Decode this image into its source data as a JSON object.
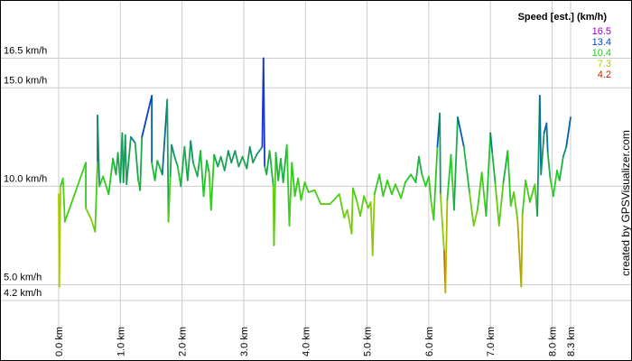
{
  "chart_data": {
    "type": "line",
    "legend_title": "Speed [est.] (km/h)",
    "legend": [
      {
        "value": 16.5,
        "color": "#9900cc"
      },
      {
        "value": 13.4,
        "color": "#0044cc"
      },
      {
        "value": 10.4,
        "color": "#22cc22"
      },
      {
        "value": 7.3,
        "color": "#aacc00"
      },
      {
        "value": 4.2,
        "color": "#cc2200"
      }
    ],
    "credit": "created by GPSVisualizer.com",
    "xlim": [
      0,
      8.3
    ],
    "ylim": [
      3.65,
      19.0
    ],
    "xticks": [
      {
        "value": 0,
        "label": "0.0 km"
      },
      {
        "value": 1,
        "label": "1.0 km"
      },
      {
        "value": 2,
        "label": "2.0 km"
      },
      {
        "value": 3,
        "label": "3.0 km"
      },
      {
        "value": 4,
        "label": "4.0 km"
      },
      {
        "value": 5,
        "label": "5.0 km"
      },
      {
        "value": 6,
        "label": "6.0 km"
      },
      {
        "value": 7,
        "label": "7.0 km"
      },
      {
        "value": 8,
        "label": "8.0 km"
      },
      {
        "value": 8.3,
        "label": "8.3 km"
      }
    ],
    "yticks": [
      {
        "value": 4.2,
        "label": "4.2 km/h"
      },
      {
        "value": 5,
        "label": "5.0 km/h"
      },
      {
        "value": 10,
        "label": "10.0 km/h"
      },
      {
        "value": 15,
        "label": "15.0 km/h"
      },
      {
        "value": 16.5,
        "label": "16.5 km/h"
      }
    ],
    "grid": true,
    "x": [
      0.0,
      0.01,
      0.03,
      0.07,
      0.1,
      0.44,
      0.44,
      0.53,
      0.59,
      0.63,
      0.63,
      0.66,
      0.72,
      0.81,
      0.88,
      0.93,
      0.96,
      1.0,
      1.03,
      1.05,
      1.08,
      1.1,
      1.17,
      1.24,
      1.29,
      1.32,
      1.35,
      1.51,
      1.51,
      1.56,
      1.6,
      1.68,
      1.76,
      1.78,
      1.81,
      1.83,
      1.88,
      1.93,
      1.98,
      2.04,
      2.09,
      2.14,
      2.18,
      2.25,
      2.3,
      2.35,
      2.4,
      2.44,
      2.47,
      2.52,
      2.58,
      2.63,
      2.69,
      2.75,
      2.8,
      2.86,
      2.92,
      2.98,
      3.05,
      3.1,
      3.15,
      3.21,
      3.3,
      3.32,
      3.34,
      3.37,
      3.42,
      3.48,
      3.49,
      3.52,
      3.56,
      3.6,
      3.64,
      3.7,
      3.74,
      3.78,
      3.83,
      3.88,
      3.93,
      3.99,
      4.05,
      4.15,
      4.25,
      4.4,
      4.55,
      4.63,
      4.68,
      4.75,
      4.77,
      4.83,
      4.89,
      4.95,
      5.02,
      5.06,
      5.09,
      5.12,
      5.2,
      5.26,
      5.33,
      5.4,
      5.46,
      5.55,
      5.62,
      5.71,
      5.79,
      5.84,
      5.89,
      5.95,
      6.0,
      6.04,
      6.08,
      6.14,
      6.18,
      6.19,
      6.25,
      6.27,
      6.3,
      6.36,
      6.41,
      6.47,
      6.57,
      6.66,
      6.73,
      6.79,
      6.86,
      6.93,
      7.0,
      7.03,
      7.08,
      7.14,
      7.21,
      7.28,
      7.33,
      7.38,
      7.44,
      7.5,
      7.52,
      7.57,
      7.64,
      7.72,
      7.76,
      7.8,
      7.82,
      7.87,
      7.91,
      7.93,
      7.97,
      8.02,
      8.08,
      8.12,
      8.18,
      8.23,
      8.3
    ],
    "series": [
      {
        "name": "Speed",
        "values": [
          9.6,
          4.9,
          10.0,
          10.4,
          8.2,
          11.2,
          8.9,
          8.3,
          7.7,
          11.3,
          13.6,
          10.0,
          10.5,
          9.6,
          11.4,
          10.6,
          11.7,
          10.2,
          12.7,
          10.2,
          12.6,
          10.1,
          12.5,
          12.2,
          10.3,
          9.8,
          12.5,
          14.6,
          11.2,
          10.3,
          11.3,
          10.6,
          14.4,
          8.2,
          10.5,
          12.1,
          11.5,
          11.0,
          10.0,
          12.0,
          10.3,
          12.3,
          11.2,
          10.5,
          11.8,
          9.5,
          11.3,
          10.7,
          8.8,
          11.6,
          11.0,
          11.5,
          10.8,
          11.8,
          11.2,
          11.8,
          11.0,
          11.5,
          10.9,
          12.0,
          11.2,
          11.6,
          12.0,
          16.5,
          11.0,
          10.6,
          11.8,
          10.0,
          7.0,
          11.7,
          10.3,
          11.4,
          10.2,
          12.1,
          8.0,
          11.2,
          9.5,
          10.4,
          9.3,
          10.2,
          9.7,
          9.8,
          9.1,
          9.1,
          9.6,
          8.4,
          8.8,
          7.6,
          9.9,
          9.3,
          8.5,
          9.5,
          8.9,
          9.2,
          6.5,
          9.6,
          10.6,
          9.5,
          10.3,
          9.6,
          10.1,
          9.4,
          10.2,
          10.6,
          10.2,
          11.5,
          10.6,
          10.0,
          10.5,
          9.2,
          8.3,
          12.0,
          13.7,
          9.6,
          6.7,
          4.6,
          9.3,
          11.6,
          8.8,
          13.5,
          12.0,
          9.7,
          8.0,
          8.8,
          10.7,
          8.5,
          12.7,
          11.7,
          10.1,
          8.0,
          10.2,
          11.8,
          9.0,
          9.7,
          8.3,
          4.9,
          8.6,
          10.3,
          9.2,
          10.1,
          8.5,
          14.6,
          10.6,
          12.7,
          13.2,
          11.7,
          10.4,
          9.5,
          10.8,
          10.3,
          11.5,
          12.0,
          13.5
        ]
      }
    ]
  }
}
